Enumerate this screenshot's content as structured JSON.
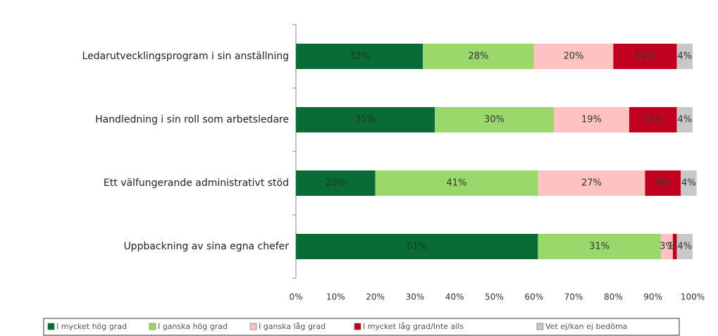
{
  "chart_data": {
    "type": "stacked-barh",
    "categories": [
      "Ledarutvecklingsprogram i sin anställning",
      "Handledning i sin roll som arbetsledare",
      "Ett välfungerande administrativt stöd",
      "Uppbackning av sina egna chefer"
    ],
    "series": [
      {
        "name": "I mycket hög grad",
        "color": "#0b6b36",
        "values": [
          32,
          35,
          20,
          61
        ],
        "value_labels": [
          "32%",
          "35%",
          "20%",
          "61%"
        ]
      },
      {
        "name": "I ganska hög grad",
        "color": "#9ad86c",
        "values": [
          28,
          30,
          41,
          31
        ],
        "value_labels": [
          "28%",
          "30%",
          "41%",
          "31%"
        ]
      },
      {
        "name": "I ganska låg grad",
        "color": "#ffc2c2",
        "values": [
          20,
          19,
          27,
          3
        ],
        "value_labels": [
          "20%",
          "19%",
          "27%",
          "3%"
        ]
      },
      {
        "name": "I mycket låg grad/Inte alls",
        "color": "#c0001e",
        "values": [
          16,
          12,
          9,
          1
        ],
        "value_labels": [
          "16%",
          "12%",
          "9%",
          "1%"
        ]
      },
      {
        "name": "Vet ej/kan ej bedöma",
        "color": "#c8c8c8",
        "values": [
          4,
          4,
          4,
          4
        ],
        "value_labels": [
          "4%",
          "4%",
          "4%",
          "4%"
        ]
      }
    ],
    "xlim": [
      0,
      100
    ],
    "xticks": [
      {
        "value": 0,
        "label": "0%"
      },
      {
        "value": 10,
        "label": "10%"
      },
      {
        "value": 20,
        "label": "20%"
      },
      {
        "value": 30,
        "label": "30%"
      },
      {
        "value": 40,
        "label": "40%"
      },
      {
        "value": 50,
        "label": "50%"
      },
      {
        "value": 60,
        "label": "60%"
      },
      {
        "value": 70,
        "label": "70%"
      },
      {
        "value": 80,
        "label": "80%"
      },
      {
        "value": 90,
        "label": "90%"
      },
      {
        "value": 100,
        "label": "100%"
      }
    ],
    "legend": "bottom"
  }
}
